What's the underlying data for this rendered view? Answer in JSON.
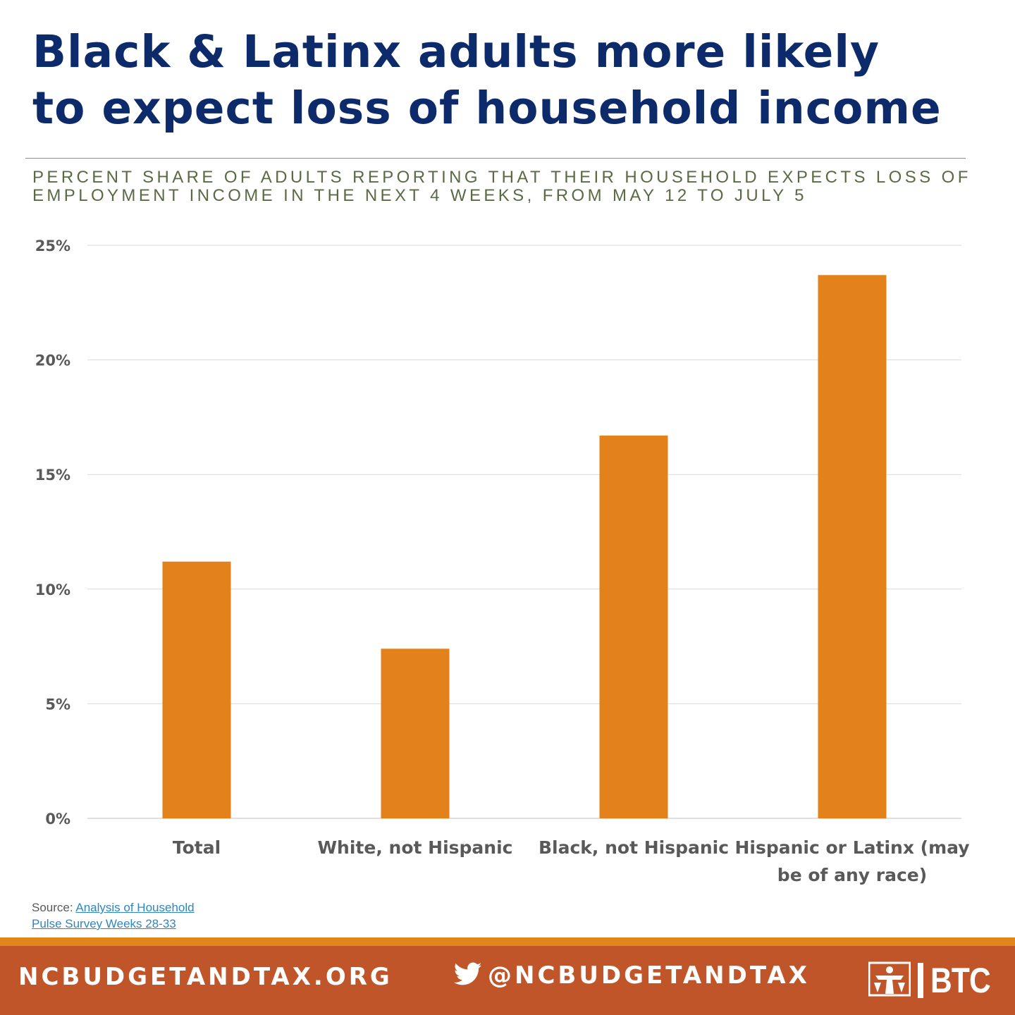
{
  "title": {
    "line1": "Black & Latinx adults more likely",
    "line2": "to expect loss of household income"
  },
  "subtitle": {
    "line1": "PERCENT SHARE OF ADULTS REPORTING THAT THEIR HOUSEHOLD EXPECTS LOSS OF",
    "line2": "EMPLOYMENT INCOME IN THE NEXT 4 WEEKS, FROM MAY 12 TO JULY 5"
  },
  "chart_data": {
    "type": "bar",
    "categories": [
      [
        "Total"
      ],
      [
        "White, not Hispanic"
      ],
      [
        "Black, not Hispanic"
      ],
      [
        "Hispanic or Latinx (may",
        "be of any race)"
      ]
    ],
    "values": [
      11.2,
      7.4,
      16.7,
      23.7
    ],
    "ylim": [
      0,
      25
    ],
    "yticks": [
      "0%",
      "5%",
      "10%",
      "15%",
      "20%",
      "25%"
    ],
    "ytick_values": [
      0,
      5,
      10,
      15,
      20,
      25
    ],
    "grid": true,
    "bar_color": "#e3821a",
    "grid_color": "#d9d9d9"
  },
  "source": {
    "prefix": "Source: ",
    "link_line1": "Analysis of Household",
    "link_line2": "Pulse Survey Weeks 28-33"
  },
  "footer": {
    "url": "NCBUDGETANDTAX.ORG",
    "handle": "@NCBUDGETANDTAX",
    "logo_text": "BTC",
    "twitter_icon": "twitter-bird-icon",
    "colors": {
      "band": "#c0552a",
      "stripe": "#e0861a"
    }
  }
}
